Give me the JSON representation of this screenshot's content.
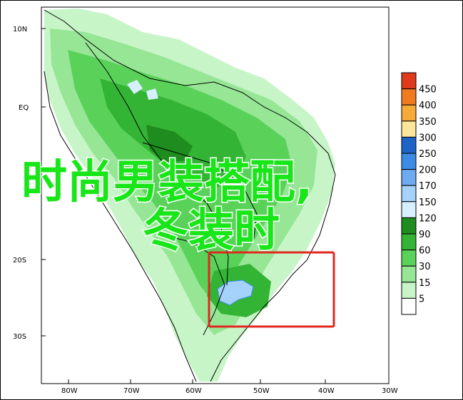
{
  "map": {
    "lat_labels": [
      "10N",
      "EQ",
      "20S",
      "30S"
    ],
    "lon_labels": [
      "80W",
      "70W",
      "60W",
      "50W",
      "40W",
      "30W"
    ]
  },
  "legend": {
    "bins": [
      {
        "label": "450",
        "color": "#e03a1c"
      },
      {
        "label": "400",
        "color": "#f07a22"
      },
      {
        "label": "350",
        "color": "#f5aa3a"
      },
      {
        "label": "300",
        "color": "#fbe69a"
      },
      {
        "label": "250",
        "color": "#1e64c8"
      },
      {
        "label": "200",
        "color": "#3c8ce6"
      },
      {
        "label": "170",
        "color": "#6eaaf0"
      },
      {
        "label": "150",
        "color": "#a5d2fa"
      },
      {
        "label": "120",
        "color": "#d7f0ff"
      },
      {
        "label": "90",
        "color": "#1e8c1e"
      },
      {
        "label": "60",
        "color": "#34b434"
      },
      {
        "label": "30",
        "color": "#5ad25a"
      },
      {
        "label": "15",
        "color": "#96e696"
      },
      {
        "label": "5",
        "color": "#c8f5c8"
      },
      {
        "label": "",
        "color": "#ffffff"
      }
    ]
  },
  "overlay": {
    "line1": "时尚男装搭配,",
    "line2": "冬装时",
    "text_color": "#19e619",
    "highlight_color": "#e0281e"
  }
}
